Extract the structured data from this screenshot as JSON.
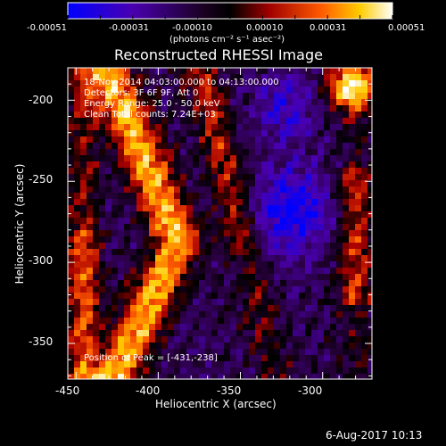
{
  "colorbar": {
    "tick_labels": [
      "-0.00051",
      "-0.00031",
      "-0.00010",
      "0.00010",
      "0.00031",
      "0.00051"
    ],
    "units": "(photons cm⁻² s⁻¹ asec⁻²)",
    "range": [
      -0.00051,
      0.00051
    ],
    "colors": [
      "#0000ff",
      "#5500aa",
      "#220030",
      "#000000",
      "#aa0000",
      "#ff6600",
      "#ffcc00",
      "#ffffff"
    ]
  },
  "plot": {
    "title": "Reconstructed RHESSI Image",
    "xlabel": "Heliocentric X (arcsec)",
    "ylabel": "Heliocentric Y (arcsec)",
    "xlim": [
      -455,
      -270
    ],
    "ylim": [
      -372,
      -180
    ],
    "xticks": [
      -450,
      -400,
      -350,
      -300
    ],
    "yticks": [
      -200,
      -250,
      -300,
      -350
    ],
    "info_lines": [
      "18-Nov-2014 04:03:00.000 to 04:13:00.000",
      "Detectors: 3F 6F 9F, Att 0",
      "Energy Range: 25.0 - 50.0 keV",
      "Clean    Total counts: 7.24E+03"
    ],
    "peak_label": "Position of Peak = [-431,-238]"
  },
  "footer": {
    "date": "6-Aug-2017 10:13"
  }
}
